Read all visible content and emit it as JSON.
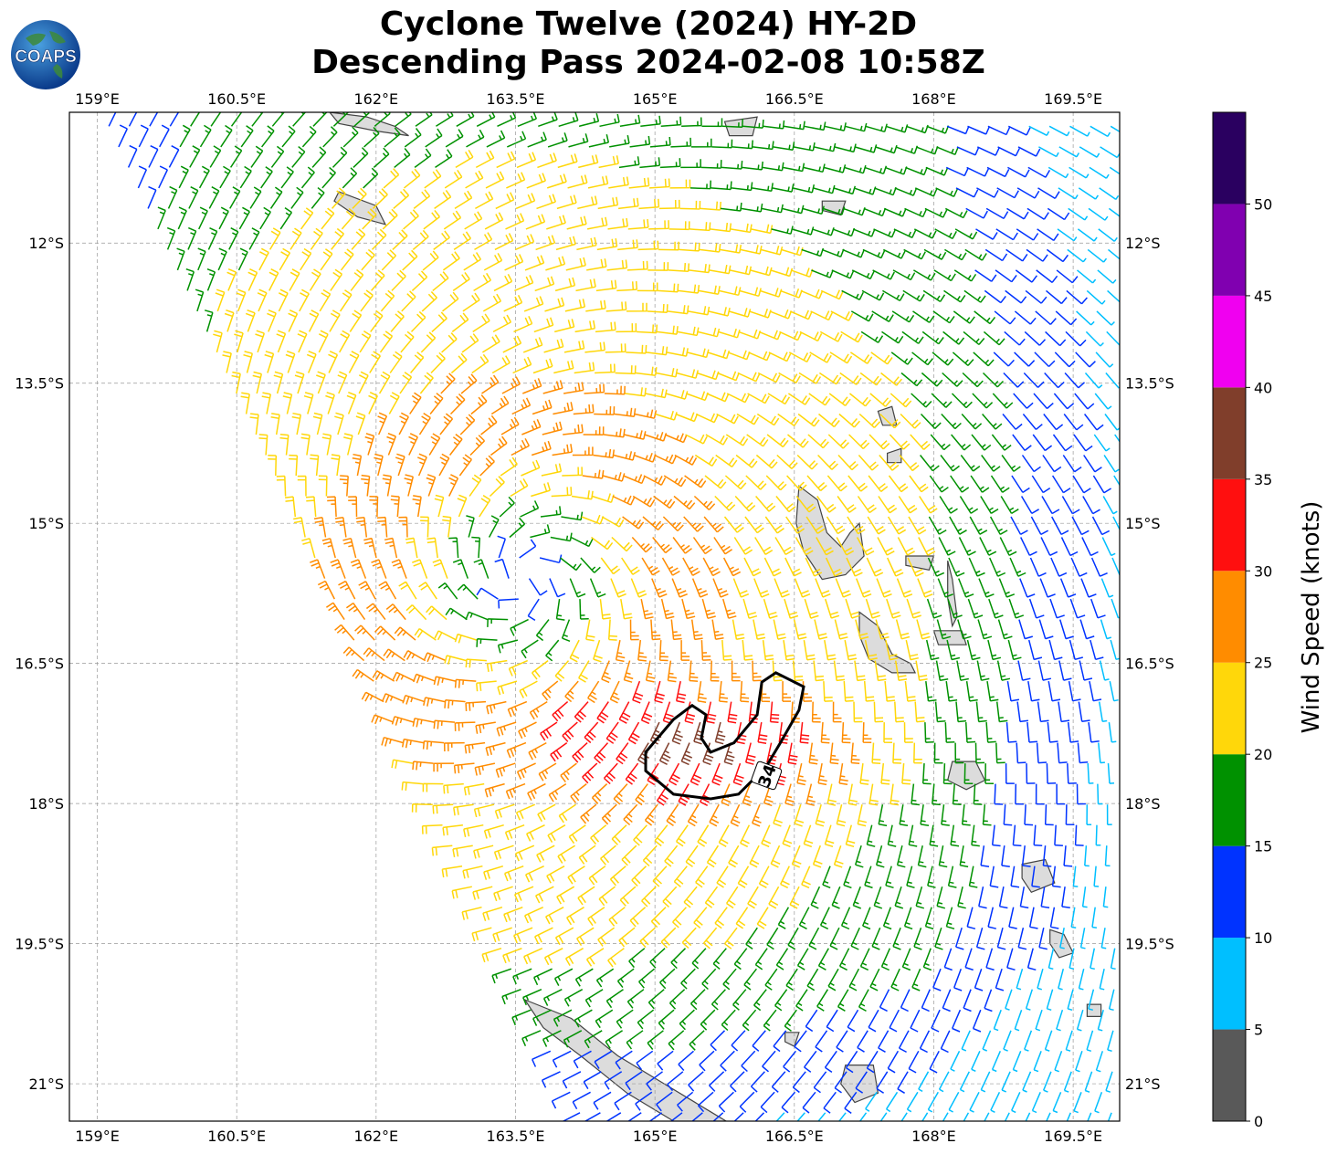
{
  "title": {
    "line1": "Cyclone Twelve (2024) HY-2D",
    "line2": "Descending Pass 2024-02-08 10:58Z"
  },
  "logo": {
    "text": "COAPS",
    "icon": "globe-icon"
  },
  "map": {
    "lon_range": [
      158.7,
      170.0
    ],
    "lat_range": [
      -21.4,
      -10.6
    ],
    "lon_ticks": [
      "159°E",
      "160.5°E",
      "162°E",
      "163.5°E",
      "165°E",
      "166.5°E",
      "168°E",
      "169.5°E"
    ],
    "lon_tick_values": [
      159,
      160.5,
      162,
      163.5,
      165,
      166.5,
      168,
      169.5
    ],
    "lat_ticks": [
      "12°S",
      "13.5°S",
      "15°S",
      "16.5°S",
      "18°S",
      "19.5°S",
      "21°S"
    ],
    "lat_tick_values": [
      -12,
      -13.5,
      -15,
      -16.5,
      -18,
      -19.5,
      -21
    ],
    "cyclone_center": {
      "lon": 163.6,
      "lat": -15.6
    },
    "contour_label": "34",
    "land_color": "#dcdcdc",
    "coast_color": "#444444"
  },
  "colorbar": {
    "title": "Wind Speed (knots)",
    "bins": [
      {
        "from": 0,
        "to": 5,
        "color": "#595959"
      },
      {
        "from": 5,
        "to": 10,
        "color": "#00bfff"
      },
      {
        "from": 10,
        "to": 15,
        "color": "#0033ff"
      },
      {
        "from": 15,
        "to": 20,
        "color": "#009100"
      },
      {
        "from": 20,
        "to": 25,
        "color": "#ffd70a"
      },
      {
        "from": 25,
        "to": 30,
        "color": "#ff8c00"
      },
      {
        "from": 30,
        "to": 35,
        "color": "#ff0f0f"
      },
      {
        "from": 35,
        "to": 40,
        "color": "#803e2b"
      },
      {
        "from": 40,
        "to": 45,
        "color": "#f000f0"
      },
      {
        "from": 45,
        "to": 50,
        "color": "#8000b0"
      },
      {
        "from": 50,
        "to": 55,
        "color": "#2a0060"
      }
    ],
    "tick_labels": [
      "0",
      "5",
      "10",
      "15",
      "20",
      "25",
      "30",
      "35",
      "40",
      "45",
      "50"
    ]
  }
}
